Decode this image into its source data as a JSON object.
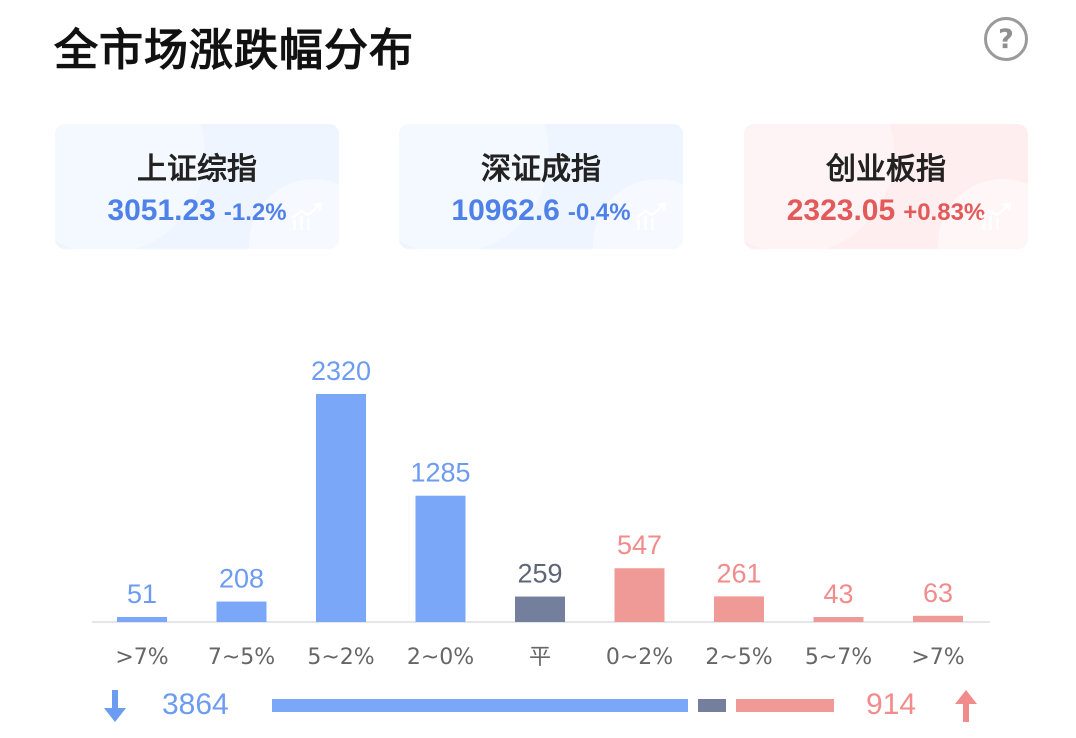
{
  "title": "全市场涨跌幅分布",
  "help_icon": "?",
  "indices": [
    {
      "name": "上证综指",
      "value": "3051.23",
      "change": "-1.2%",
      "tone": "down"
    },
    {
      "name": "深证成指",
      "value": "10962.6",
      "change": "-0.4%",
      "tone": "down"
    },
    {
      "name": "创业板指",
      "value": "2323.05",
      "change": "+0.83%",
      "tone": "up"
    }
  ],
  "colors": {
    "down": "#7aa7f8",
    "flat": "#737f9c",
    "up": "#f09a98",
    "down_text": "#6c9bf2",
    "up_text": "#f28b8b",
    "flat_text": "#5f6678",
    "axis_label": "#666666"
  },
  "chart_data": {
    "type": "bar",
    "categories": [
      ">7%",
      "7~5%",
      "5~2%",
      "2~0%",
      "平",
      "0~2%",
      "2~5%",
      "5~7%",
      ">7%"
    ],
    "values": [
      51,
      208,
      2320,
      1285,
      259,
      547,
      261,
      43,
      63
    ],
    "groups": [
      "down",
      "down",
      "down",
      "down",
      "flat",
      "up",
      "up",
      "up",
      "up"
    ],
    "ylim": [
      0,
      2320
    ],
    "grid": false
  },
  "summary": {
    "down_count": "3864",
    "up_count": "914",
    "down_total": 3864,
    "flat_total": 259,
    "up_total": 914
  }
}
